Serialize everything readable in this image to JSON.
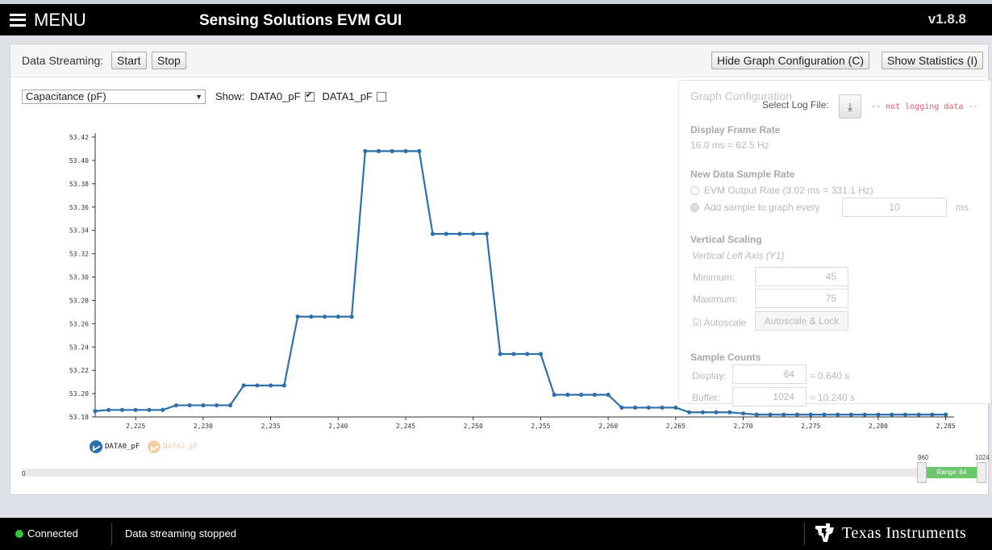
{
  "header": {
    "menu_label": "MENU",
    "app_title": "Sensing Solutions EVM GUI",
    "version": "v1.8.8"
  },
  "toolbar": {
    "streaming_label": "Data Streaming:",
    "start_label": "Start",
    "stop_label": "Stop",
    "hide_config_label": "Hide Graph Configuration (C)",
    "show_stats_label": "Show Statistics (I)"
  },
  "controls": {
    "measurement_select": "Capacitance (pF)",
    "show_label": "Show:",
    "channels": [
      {
        "label": "DATA0_pF",
        "checked": true
      },
      {
        "label": "DATA1_pF",
        "checked": false
      }
    ]
  },
  "config": {
    "title": "Graph Configuration",
    "select_log_label": "Select Log File:",
    "not_logging": "-- not logging data --",
    "frame_rate_title": "Display Frame Rate",
    "frame_rate_value": "16.0 ms = 62.5 Hz",
    "sample_rate_title": "New Data Sample Rate",
    "evm_output_label": "EVM Output Rate (3.02 ms = 331.1 Hz)",
    "add_sample_label": "Add sample to graph every",
    "add_sample_value": "10",
    "add_sample_unit": "ms",
    "vertical_title": "Vertical Scaling",
    "vertical_sub": "Vertical Left Axis (Y1)",
    "min_label": "Minimum:",
    "min_value": "45",
    "max_label": "Maximum:",
    "max_value": "75",
    "autoscale_label": "Autoscale",
    "autoscale_lock_label": "Autoscale & Lock",
    "sample_counts_title": "Sample Counts",
    "display_label": "Display:",
    "display_value": "64",
    "display_time": "≈ 0.640 s",
    "buffer_label": "Buffer:",
    "buffer_value": "1024",
    "buffer_time": "≈ 10.240 s"
  },
  "range": {
    "start": "0",
    "end": "1024",
    "sel_start": "960",
    "label": "Range: 64"
  },
  "status": {
    "connected": "Connected",
    "message": "Data streaming stopped",
    "brand": "Texas Instruments"
  },
  "colors": {
    "series0": "#2e6fa8",
    "series1": "#f5cfa8",
    "connected": "#31c742",
    "range": "#6cc66c"
  },
  "chart_data": {
    "type": "line",
    "ylim": [
      53.18,
      53.42
    ],
    "y_ticks": [
      "53.18",
      "53.20",
      "53.22",
      "53.24",
      "53.26",
      "53.28",
      "53.30",
      "53.32",
      "53.34",
      "53.36",
      "53.38",
      "53.40",
      "53.42"
    ],
    "x_ticks": [
      "2,225",
      "2,230",
      "2,235",
      "2,240",
      "2,245",
      "2,250",
      "2,255",
      "2,260",
      "2,265",
      "2,270",
      "2,275",
      "2,280",
      "2,285"
    ],
    "xlim": [
      2222,
      2285.5
    ],
    "series": [
      {
        "name": "DATA0_pF",
        "x": [
          2222,
          2223,
          2224,
          2225,
          2226,
          2227,
          2228,
          2229,
          2230,
          2231,
          2232,
          2233,
          2234,
          2235,
          2236,
          2237,
          2238,
          2239,
          2240,
          2241,
          2242,
          2243,
          2244,
          2245,
          2246,
          2247,
          2248,
          2249,
          2250,
          2251,
          2252,
          2253,
          2254,
          2255,
          2256,
          2257,
          2258,
          2259,
          2260,
          2261,
          2262,
          2263,
          2264,
          2265,
          2266,
          2267,
          2268,
          2269,
          2270,
          2271,
          2272,
          2273,
          2274,
          2275,
          2276,
          2277,
          2278,
          2279,
          2280,
          2281,
          2282,
          2283,
          2284,
          2285
        ],
        "y": [
          53.185,
          53.186,
          53.186,
          53.186,
          53.186,
          53.186,
          53.19,
          53.19,
          53.19,
          53.19,
          53.19,
          53.207,
          53.207,
          53.207,
          53.207,
          53.266,
          53.266,
          53.266,
          53.266,
          53.266,
          53.408,
          53.408,
          53.408,
          53.408,
          53.408,
          53.337,
          53.337,
          53.337,
          53.337,
          53.337,
          53.234,
          53.234,
          53.234,
          53.234,
          53.199,
          53.199,
          53.199,
          53.199,
          53.199,
          53.188,
          53.188,
          53.188,
          53.188,
          53.188,
          53.184,
          53.184,
          53.184,
          53.184,
          53.183,
          53.182,
          53.182,
          53.182,
          53.182,
          53.182,
          53.182,
          53.182,
          53.182,
          53.182,
          53.182,
          53.182,
          53.182,
          53.182,
          53.182,
          53.182
        ]
      }
    ]
  }
}
